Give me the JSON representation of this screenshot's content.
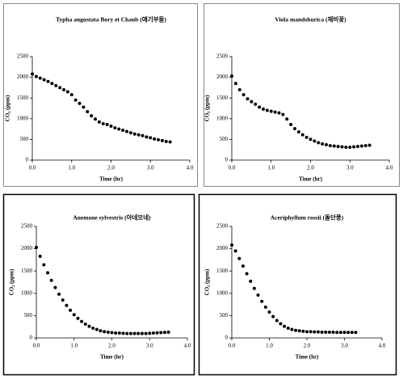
{
  "chart_data": [
    {
      "type": "scatter",
      "title": "Typha angustata Bory et Chaub (애기부들)",
      "x_label": "Time (hr)",
      "y_label": "CO₂ (ppm)",
      "color": "#000000",
      "x": [
        0.0,
        0.1,
        0.2,
        0.3,
        0.4,
        0.5,
        0.6,
        0.7,
        0.8,
        0.9,
        1.0,
        1.1,
        1.2,
        1.3,
        1.4,
        1.5,
        1.6,
        1.7,
        1.8,
        1.9,
        2.0,
        2.1,
        2.2,
        2.3,
        2.4,
        2.5,
        2.6,
        2.7,
        2.8,
        2.9,
        3.0,
        3.1,
        3.2,
        3.3,
        3.4,
        3.5
      ],
      "values": [
        2080,
        2020,
        1980,
        1940,
        1900,
        1850,
        1800,
        1750,
        1700,
        1650,
        1580,
        1450,
        1370,
        1280,
        1170,
        1070,
        990,
        920,
        880,
        860,
        820,
        780,
        750,
        720,
        690,
        660,
        630,
        610,
        590,
        560,
        540,
        510,
        490,
        470,
        450,
        440
      ],
      "xlim": [
        0,
        4
      ],
      "xticks": [
        {
          "value": 0,
          "label": "0.0"
        },
        {
          "value": 1,
          "label": "1.0"
        },
        {
          "value": 2,
          "label": "2.0"
        },
        {
          "value": 3,
          "label": "3.0"
        },
        {
          "value": 4,
          "label": "4.0"
        }
      ],
      "ylim": [
        0,
        2500
      ],
      "yticks": [
        0,
        500,
        1000,
        1500,
        2000,
        2500
      ]
    },
    {
      "type": "scatter",
      "title": "Viola mandshurica (제비꽃)",
      "x_label": "Time (hr)",
      "y_label": "CO₂ (ppm)",
      "color": "#000000",
      "x": [
        0.0,
        0.1,
        0.2,
        0.3,
        0.4,
        0.5,
        0.6,
        0.7,
        0.8,
        0.9,
        1.0,
        1.1,
        1.2,
        1.3,
        1.4,
        1.5,
        1.6,
        1.7,
        1.8,
        1.9,
        2.0,
        2.1,
        2.2,
        2.3,
        2.4,
        2.5,
        2.6,
        2.7,
        2.8,
        2.9,
        3.0,
        3.1,
        3.2,
        3.3,
        3.4,
        3.5
      ],
      "values": [
        2030,
        1850,
        1700,
        1580,
        1480,
        1410,
        1350,
        1280,
        1230,
        1200,
        1180,
        1160,
        1140,
        1100,
        990,
        860,
        760,
        680,
        610,
        550,
        500,
        460,
        420,
        390,
        370,
        350,
        340,
        330,
        320,
        310,
        310,
        320,
        330,
        340,
        350,
        360
      ],
      "xlim": [
        0,
        4
      ],
      "xticks": [
        {
          "value": 0,
          "label": "0.0"
        },
        {
          "value": 1,
          "label": "1.0"
        },
        {
          "value": 2,
          "label": "2.0"
        },
        {
          "value": 3,
          "label": "3.0"
        },
        {
          "value": 4,
          "label": "4.0"
        }
      ],
      "ylim": [
        0,
        2500
      ],
      "yticks": [
        0,
        500,
        1000,
        1500,
        2000,
        2500
      ]
    },
    {
      "type": "scatter",
      "title": "Anemone sylvestris (아네모네)",
      "x_label": "Time (hr)",
      "y_label": "CO₂ (ppm)",
      "color": "#000000",
      "x": [
        0.0,
        0.1,
        0.2,
        0.3,
        0.4,
        0.5,
        0.6,
        0.7,
        0.8,
        0.9,
        1.0,
        1.1,
        1.2,
        1.3,
        1.4,
        1.5,
        1.6,
        1.7,
        1.8,
        1.9,
        2.0,
        2.1,
        2.2,
        2.3,
        2.4,
        2.5,
        2.6,
        2.7,
        2.8,
        2.9,
        3.0,
        3.1,
        3.2,
        3.3,
        3.4,
        3.5
      ],
      "values": [
        2030,
        1830,
        1640,
        1460,
        1290,
        1130,
        980,
        850,
        730,
        620,
        520,
        440,
        370,
        310,
        260,
        220,
        190,
        160,
        140,
        130,
        120,
        110,
        110,
        105,
        100,
        100,
        100,
        100,
        100,
        100,
        105,
        110,
        115,
        120,
        125,
        130
      ],
      "xlim": [
        0,
        4
      ],
      "xticks": [
        {
          "value": 0,
          "label": "0.0"
        },
        {
          "value": 1,
          "label": "1.0"
        },
        {
          "value": 2,
          "label": "2.0"
        },
        {
          "value": 3,
          "label": "3.0"
        },
        {
          "value": 4,
          "label": "4.0"
        }
      ],
      "ylim": [
        0,
        2500
      ],
      "yticks": [
        0,
        500,
        1000,
        1500,
        2000,
        2500
      ]
    },
    {
      "type": "scatter",
      "title": "Aceriphyllum rossii (돌단풍)",
      "x_label": "Time (hr)",
      "y_label": "CO₂ (ppm)",
      "color": "#000000",
      "x": [
        0.0,
        0.1,
        0.2,
        0.3,
        0.4,
        0.5,
        0.6,
        0.7,
        0.8,
        0.9,
        1.0,
        1.1,
        1.2,
        1.3,
        1.4,
        1.5,
        1.6,
        1.7,
        1.8,
        1.9,
        2.0,
        2.1,
        2.2,
        2.3,
        2.4,
        2.5,
        2.6,
        2.7,
        2.8,
        2.9,
        3.0,
        3.1,
        3.2,
        3.3
      ],
      "values": [
        2080,
        1950,
        1780,
        1610,
        1440,
        1270,
        1110,
        960,
        820,
        690,
        580,
        480,
        390,
        320,
        260,
        220,
        190,
        170,
        160,
        150,
        140,
        140,
        135,
        135,
        130,
        130,
        130,
        130,
        125,
        125,
        125,
        125,
        125,
        125
      ],
      "xlim": [
        0,
        4
      ],
      "xticks": [
        {
          "value": 0,
          "label": "0.0"
        },
        {
          "value": 1,
          "label": "1.0"
        },
        {
          "value": 2,
          "label": "2.0"
        },
        {
          "value": 3,
          "label": "3.0"
        },
        {
          "value": 4,
          "label": "4.0"
        }
      ],
      "ylim": [
        0,
        2500
      ],
      "yticks": [
        0,
        500,
        1000,
        1500,
        2000,
        2500
      ]
    }
  ]
}
